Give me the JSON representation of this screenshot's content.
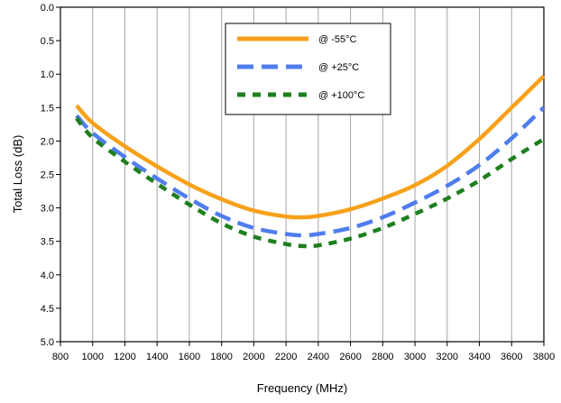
{
  "chart_data": {
    "type": "line",
    "title": "",
    "xlabel": "Frequency (MHz)",
    "ylabel": "Total Loss (dB)",
    "xlim": [
      800,
      3800
    ],
    "ylim": [
      0.0,
      5.0
    ],
    "y_inverted": true,
    "x_ticks": [
      800,
      1000,
      1200,
      1400,
      1600,
      1800,
      2000,
      2200,
      2400,
      2600,
      2800,
      3000,
      3200,
      3400,
      3600,
      3800
    ],
    "y_ticks": [
      0.0,
      0.5,
      1.0,
      1.5,
      2.0,
      2.5,
      3.0,
      3.5,
      4.0,
      4.5,
      5.0
    ],
    "y_tick_labels": [
      "0.0",
      "0.5",
      "1.0",
      "1.5",
      "2.0",
      "2.5",
      "3.0",
      "3.5",
      "4.0",
      "4.5",
      "5.0"
    ],
    "grid": "vertical",
    "legend_position": "top-center",
    "x": [
      900,
      1000,
      1200,
      1400,
      1600,
      1800,
      2000,
      2200,
      2300,
      2400,
      2600,
      2800,
      3000,
      3200,
      3400,
      3600,
      3800
    ],
    "series": [
      {
        "name": "@ -55°C",
        "color": "#f7a11a",
        "dash": "solid",
        "values": [
          1.47,
          1.73,
          2.08,
          2.38,
          2.65,
          2.87,
          3.04,
          3.13,
          3.14,
          3.12,
          3.02,
          2.86,
          2.66,
          2.37,
          1.97,
          1.5,
          1.03
        ]
      },
      {
        "name": "@ +25°C",
        "color": "#4f7ded",
        "dash": "long-dash",
        "values": [
          1.62,
          1.88,
          2.24,
          2.56,
          2.86,
          3.12,
          3.3,
          3.39,
          3.41,
          3.39,
          3.3,
          3.14,
          2.92,
          2.67,
          2.36,
          1.96,
          1.5
        ]
      },
      {
        "name": "@ +100°C",
        "color": "#1e7f1e",
        "dash": "short-dash",
        "values": [
          1.66,
          1.95,
          2.31,
          2.64,
          2.95,
          3.23,
          3.43,
          3.54,
          3.57,
          3.56,
          3.46,
          3.3,
          3.09,
          2.86,
          2.59,
          2.27,
          1.97
        ]
      }
    ]
  }
}
